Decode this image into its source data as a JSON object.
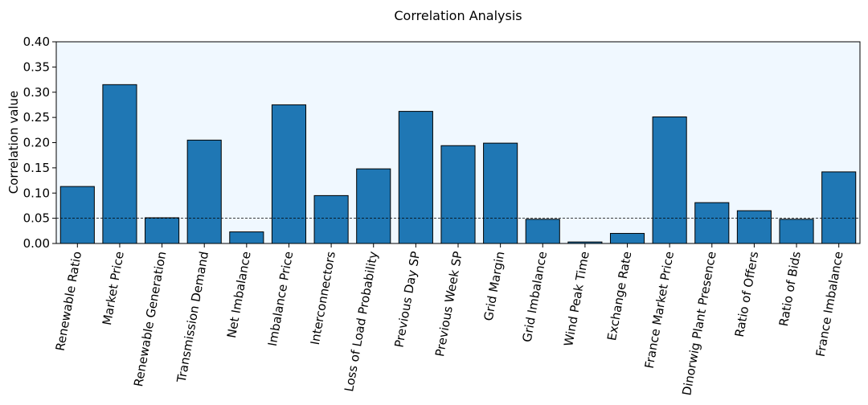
{
  "chart_data": {
    "type": "bar",
    "title": "Correlation Analysis",
    "xlabel": "",
    "ylabel": "Correlation value",
    "ylim": [
      0,
      0.4
    ],
    "yticks": [
      "0.00",
      "0.05",
      "0.10",
      "0.15",
      "0.20",
      "0.25",
      "0.30",
      "0.35",
      "0.40"
    ],
    "ytick_values": [
      0,
      0.05,
      0.1,
      0.15,
      0.2,
      0.25,
      0.3,
      0.35,
      0.4
    ],
    "reference_line": 0.05,
    "plot_background": "#f0f8ff",
    "bar_color": "#1f77b4",
    "grid": false,
    "categories": [
      "Renewable Ratio",
      "Market Price",
      "Renewable Generation",
      "Transmission Demand",
      "Net Imbalance",
      "Imbalance Price",
      "Interconnectors",
      "Loss of Load Probability",
      "Previous Day SP",
      "Previous Week SP",
      "Grid Margin",
      "Grid Imbalance",
      "Wind Peak Time",
      "Exchange Rate",
      "France Market Price",
      "Dinorwig Plant Presence",
      "Ratio of Offers",
      "Ratio of Bids",
      "France Imbalance"
    ],
    "values": [
      0.113,
      0.315,
      0.051,
      0.205,
      0.023,
      0.275,
      0.095,
      0.148,
      0.262,
      0.194,
      0.199,
      0.048,
      0.003,
      0.02,
      0.251,
      0.081,
      0.065,
      0.048,
      0.142
    ]
  }
}
